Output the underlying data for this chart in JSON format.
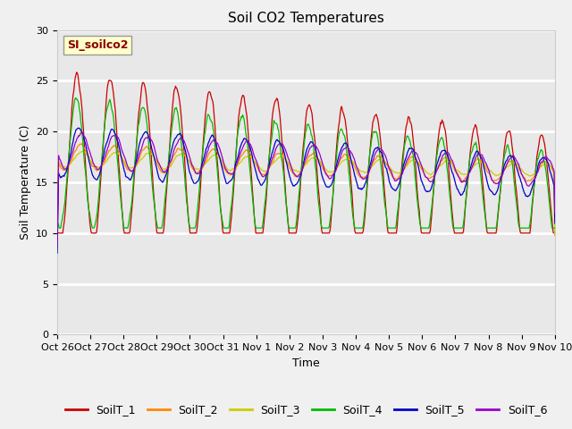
{
  "title": "Soil CO2 Temperatures",
  "xlabel": "Time",
  "ylabel": "Soil Temperature (C)",
  "site_label": "SI_soilco2",
  "ylim": [
    0,
    30
  ],
  "yticks": [
    0,
    5,
    10,
    15,
    20,
    25,
    30
  ],
  "x_tick_labels": [
    "Oct 26",
    "Oct 27",
    "Oct 28",
    "Oct 29",
    "Oct 30",
    "Oct 31",
    "Nov 1",
    "Nov 2",
    "Nov 3",
    "Nov 4",
    "Nov 5",
    "Nov 6",
    "Nov 7",
    "Nov 8",
    "Nov 9",
    "Nov 10"
  ],
  "series_colors": {
    "SoilT_1": "#cc0000",
    "SoilT_2": "#ff8800",
    "SoilT_3": "#cccc00",
    "SoilT_4": "#00bb00",
    "SoilT_5": "#0000cc",
    "SoilT_6": "#9900cc"
  },
  "series_names": [
    "SoilT_1",
    "SoilT_2",
    "SoilT_3",
    "SoilT_4",
    "SoilT_5",
    "SoilT_6"
  ],
  "background_color": "#e8e8e8",
  "fig_bg_color": "#f0f0f0",
  "title_fontsize": 11,
  "label_fontsize": 9,
  "tick_fontsize": 8,
  "legend_fontsize": 9,
  "num_days": 15,
  "pts_per_day": 48
}
